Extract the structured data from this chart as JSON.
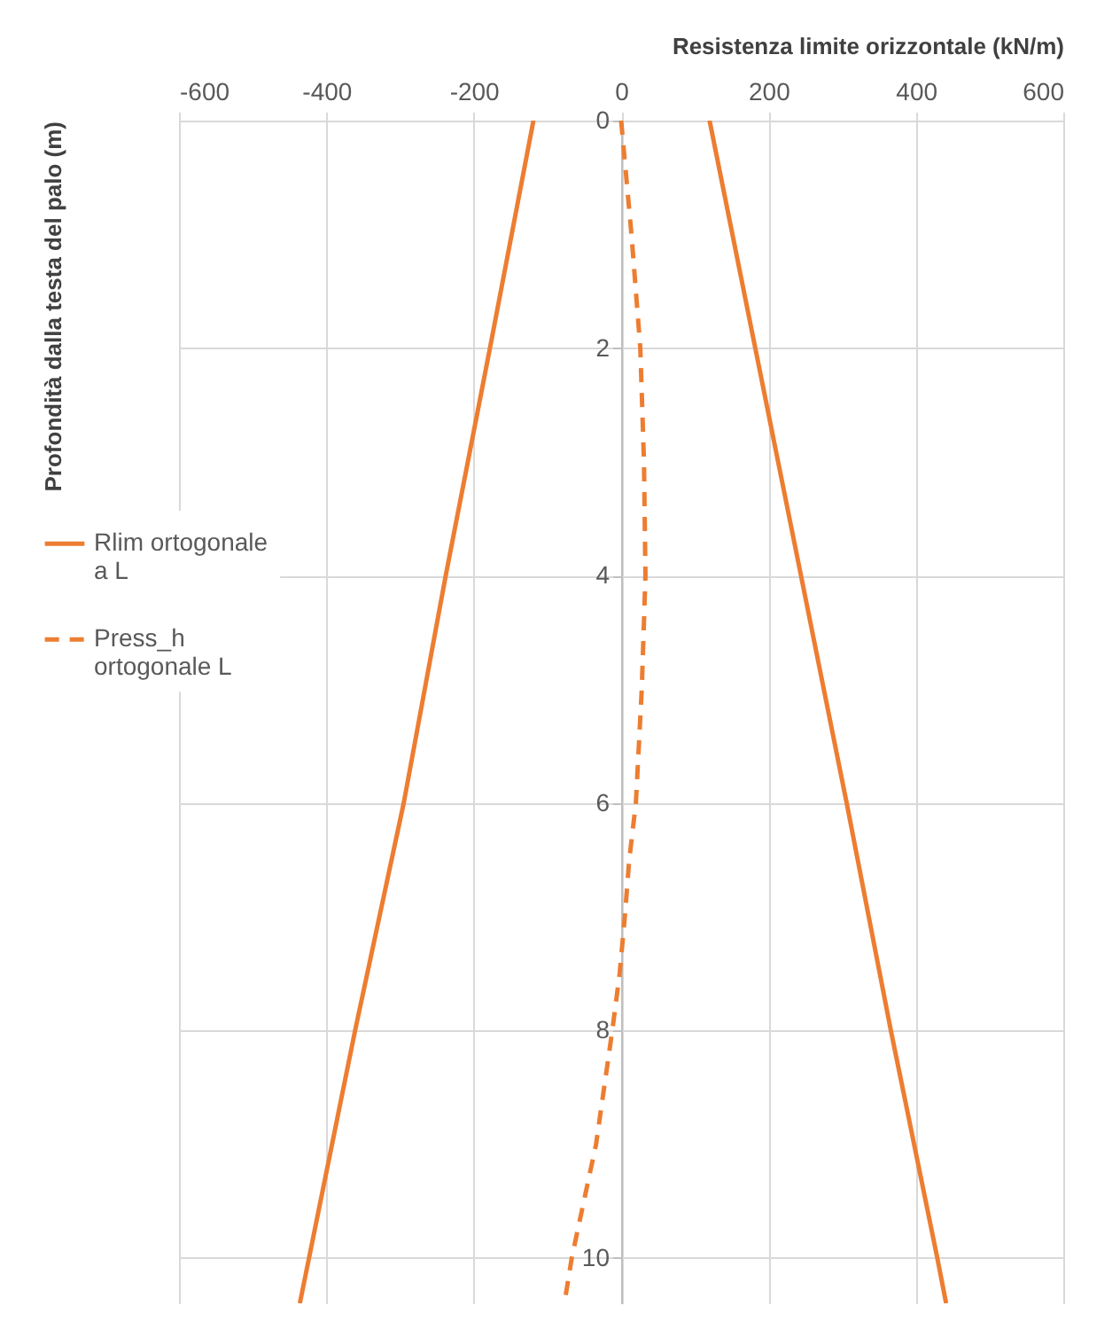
{
  "chart_data": {
    "type": "line",
    "xlabel": "Resistenza limite orizzontale (kN/m)",
    "ylabel": "Profondità dalla testa del palo (m)",
    "xlim": [
      -600,
      600
    ],
    "xticks": [
      -600,
      -400,
      -200,
      0,
      200,
      400,
      600
    ],
    "ylim": [
      10.4,
      0
    ],
    "yticks": [
      0,
      2,
      4,
      6,
      8,
      10
    ],
    "grid": true,
    "legend": "left",
    "series": [
      {
        "name": "Rlim ortogonale a L",
        "color": "#ed7d31",
        "line_style": "solid",
        "x": [
          120,
          182,
          244,
          306,
          366,
          429,
          441
        ],
        "values": [
          0,
          2,
          4,
          6,
          8,
          10,
          10.4
        ]
      },
      {
        "name": "Press_h ortogonale L",
        "color": "#ed7d31",
        "line_style": "dashed",
        "x": [
          0,
          14,
          26,
          31,
          33,
          28,
          20,
          11,
          5,
          -2,
          -12,
          -34,
          -67,
          -77
        ],
        "values": [
          0,
          1,
          2,
          3,
          4,
          5,
          6,
          6.5,
          7,
          7.5,
          8,
          9,
          10,
          10.4
        ]
      },
      {
        "color": "#ed7d31",
        "line_style": "solid",
        "x": [
          -119,
          -178,
          -238,
          -295,
          -361,
          -436
        ],
        "values": [
          0,
          2,
          4,
          6,
          8,
          10.4
        ]
      }
    ]
  }
}
